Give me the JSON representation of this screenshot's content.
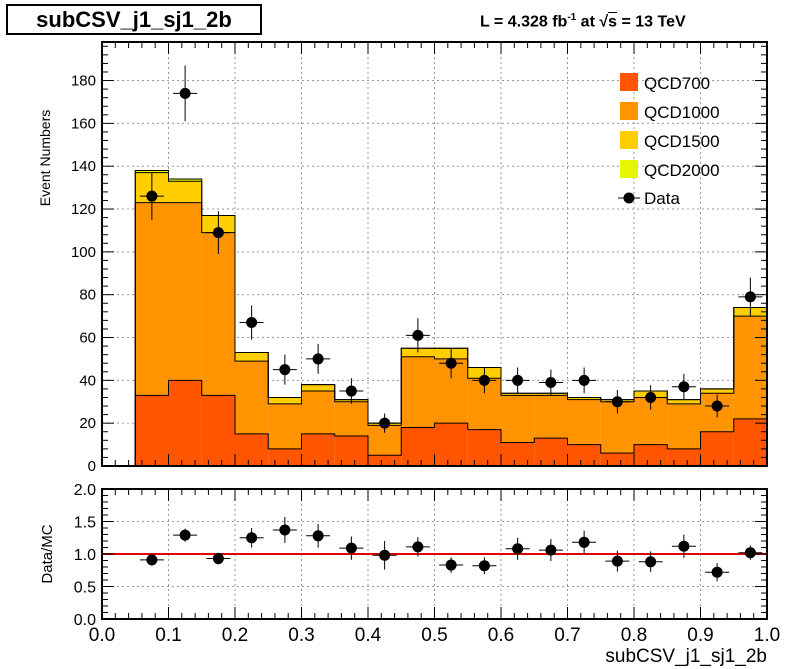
{
  "title": "subCSV_j1_sj1_2b",
  "lumi": {
    "prefix": "L = 4.328 fb",
    "exp": "-1",
    "mid": " at  √",
    "s": "s",
    "suffix": " = 13 TeV"
  },
  "chart_data": [
    {
      "type": "stacked-histogram",
      "ylabel": "Event Numbers",
      "xlim": [
        0.0,
        1.0
      ],
      "ylim": [
        0,
        198
      ],
      "yticks": [
        0,
        20,
        40,
        60,
        80,
        100,
        120,
        140,
        160,
        180
      ],
      "grid": true,
      "legend_position": "top-right",
      "bin_edges": [
        0.0,
        0.05,
        0.1,
        0.15,
        0.2,
        0.25,
        0.3,
        0.35,
        0.4,
        0.45,
        0.5,
        0.55,
        0.6,
        0.65,
        0.7,
        0.75,
        0.8,
        0.85,
        0.9,
        0.95,
        1.0
      ],
      "series": [
        {
          "name": "QCD700",
          "color": "#ff5500",
          "values": [
            0,
            33,
            40,
            33,
            15,
            8,
            15,
            14,
            5,
            18,
            20,
            17,
            11,
            13,
            10,
            6,
            10,
            8,
            16,
            22
          ]
        },
        {
          "name": "QCD1000",
          "color": "#ff9400",
          "values": [
            0,
            90,
            83,
            76,
            34,
            21,
            20,
            16,
            14,
            33,
            30,
            24,
            22,
            20,
            21,
            24,
            22,
            21,
            18,
            48
          ]
        },
        {
          "name": "QCD1500",
          "color": "#ffce00",
          "values": [
            0,
            14,
            10,
            8,
            4,
            3,
            3,
            1,
            1,
            4,
            5,
            5,
            1,
            1,
            1,
            1,
            3,
            2,
            2,
            4
          ]
        },
        {
          "name": "QCD2000",
          "color": "#e6f500",
          "values": [
            0,
            1,
            1,
            0,
            0,
            0,
            0,
            0,
            0,
            0,
            0,
            0,
            0,
            0,
            0,
            0,
            0,
            0,
            0,
            0
          ]
        }
      ],
      "data": {
        "name": "Data",
        "x": [
          0.075,
          0.125,
          0.175,
          0.225,
          0.275,
          0.325,
          0.375,
          0.425,
          0.475,
          0.525,
          0.575,
          0.625,
          0.675,
          0.725,
          0.775,
          0.825,
          0.875,
          0.925,
          0.975
        ],
        "y": [
          126,
          174,
          109,
          67,
          45,
          50,
          35,
          20,
          61,
          48,
          40,
          40,
          39,
          40,
          30,
          32,
          37,
          28,
          79
        ],
        "err": [
          11,
          13,
          10,
          8,
          7,
          7,
          6,
          4.5,
          8,
          7,
          6,
          6,
          6,
          6,
          5.5,
          5.7,
          6,
          5.3,
          9
        ]
      }
    },
    {
      "type": "scatter",
      "ylabel": "Data/MC",
      "xlabel": "subCSV_j1_sj1_2b",
      "xlim": [
        0.0,
        1.0
      ],
      "ylim": [
        0.0,
        2.0
      ],
      "yticks": [
        "0.0",
        "0.5",
        "1.0",
        "1.5",
        "2.0"
      ],
      "xticks": [
        "0.0",
        "0.1",
        "0.2",
        "0.3",
        "0.4",
        "0.5",
        "0.6",
        "0.7",
        "0.8",
        "0.9",
        "1.0"
      ],
      "grid": true,
      "reference_line": 1.0,
      "x": [
        0.075,
        0.125,
        0.175,
        0.225,
        0.275,
        0.325,
        0.375,
        0.425,
        0.475,
        0.525,
        0.575,
        0.625,
        0.675,
        0.725,
        0.775,
        0.825,
        0.875,
        0.925,
        0.975
      ],
      "y": [
        0.91,
        1.29,
        0.93,
        1.25,
        1.37,
        1.28,
        1.09,
        0.98,
        1.11,
        0.83,
        0.82,
        1.08,
        1.06,
        1.18,
        0.89,
        0.88,
        1.12,
        0.72,
        1.02
      ],
      "err": [
        0.09,
        0.1,
        0.09,
        0.15,
        0.2,
        0.18,
        0.18,
        0.22,
        0.15,
        0.12,
        0.13,
        0.17,
        0.17,
        0.18,
        0.16,
        0.16,
        0.18,
        0.14,
        0.11
      ]
    }
  ]
}
